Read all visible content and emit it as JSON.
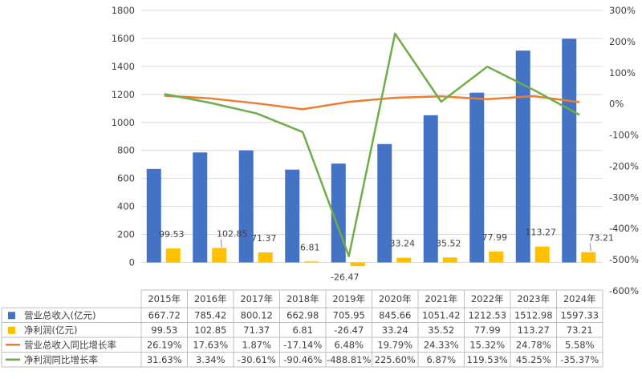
{
  "chart_data": {
    "type": "bar",
    "categories": [
      "2015年",
      "2016年",
      "2017年",
      "2018年",
      "2019年",
      "2020年",
      "2021年",
      "2022年",
      "2023年",
      "2024年"
    ],
    "y_left": {
      "ylim": [
        0,
        1800
      ],
      "ticks": [
        "1800",
        "1600",
        "1400",
        "1200",
        "1000",
        "800",
        "600",
        "400",
        "200",
        "0"
      ]
    },
    "y_right": {
      "ylim": [
        -600,
        300
      ],
      "ticks": [
        "300%",
        "200%",
        "100%",
        "0%",
        "-100%",
        "-200%",
        "-300%",
        "-400%",
        "-500%",
        "-600%"
      ]
    },
    "series": [
      {
        "name": "营业总收入(亿元)",
        "type": "bar",
        "axis": "left",
        "color": "#4472C4",
        "values": [
          667.72,
          785.42,
          800.12,
          662.98,
          705.95,
          845.66,
          1051.42,
          1212.53,
          1512.98,
          1597.33
        ],
        "display": [
          "667.72",
          "785.42",
          "800.12",
          "662.98",
          "705.95",
          "845.66",
          "1051.42",
          "1212.53",
          "1512.98",
          "1597.33"
        ]
      },
      {
        "name": "净利润(亿元)",
        "type": "bar",
        "axis": "left",
        "color": "#FFC000",
        "values": [
          99.53,
          102.85,
          71.37,
          6.81,
          -26.47,
          33.24,
          35.52,
          77.99,
          113.27,
          73.21
        ],
        "display": [
          "99.53",
          "102.85",
          "71.37",
          "6.81",
          "-26.47",
          "33.24",
          "35.52",
          "77.99",
          "113.27",
          "73.21"
        ]
      },
      {
        "name": "营业总收入同比增长率",
        "type": "line",
        "axis": "right",
        "color": "#ED7D31",
        "values": [
          26.19,
          17.63,
          1.87,
          -17.14,
          6.48,
          19.79,
          24.33,
          15.32,
          24.78,
          5.58
        ],
        "display": [
          "26.19%",
          "17.63%",
          "1.87%",
          "-17.14%",
          "6.48%",
          "19.79%",
          "24.33%",
          "15.32%",
          "24.78%",
          "5.58%"
        ]
      },
      {
        "name": "净利润同比增长率",
        "type": "line",
        "axis": "right",
        "color": "#70AD47",
        "values": [
          31.63,
          3.34,
          -30.61,
          -90.46,
          -488.81,
          225.6,
          6.87,
          119.53,
          45.25,
          -35.37
        ],
        "display": [
          "31.63%",
          "3.34%",
          "-30.61%",
          "-90.46%",
          "-488.81%",
          "225.60%",
          "6.87%",
          "119.53%",
          "45.25%",
          "-35.37%"
        ]
      }
    ],
    "grid": true,
    "legend": "data-table"
  }
}
